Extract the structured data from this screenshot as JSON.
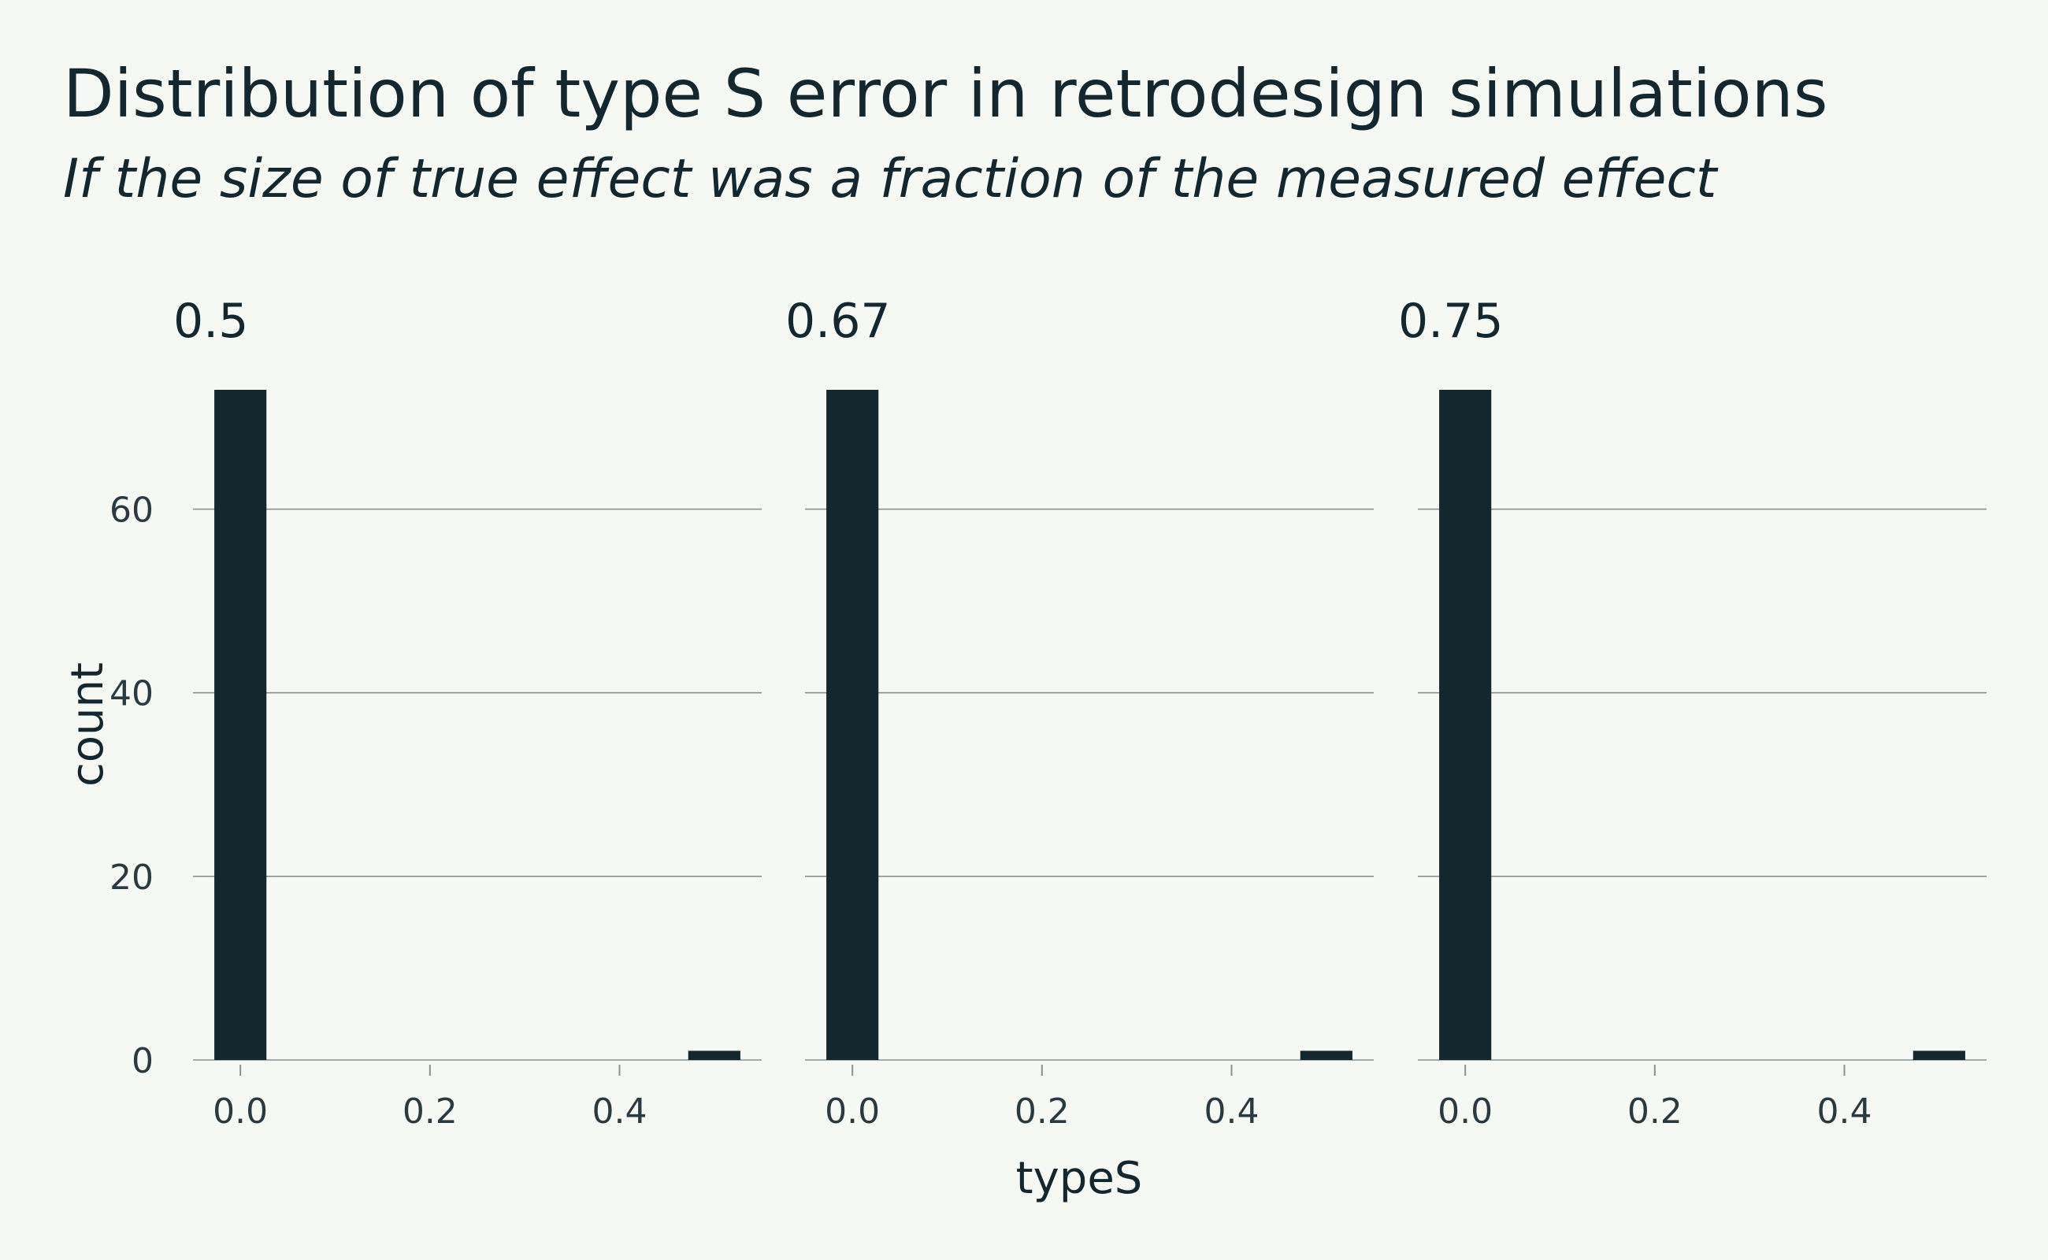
{
  "chart_data": {
    "type": "bar",
    "title": "Distribution of type S error in retrodesign simulations",
    "subtitle": "If the size of true effect was a fraction of the measured effect",
    "xlabel": "typeS",
    "ylabel": "count",
    "ylim": [
      0,
      73
    ],
    "xlim": [
      -0.05,
      0.55
    ],
    "y_ticks": [
      0,
      20,
      40,
      60
    ],
    "x_ticks": [
      0.0,
      0.2,
      0.4
    ],
    "y_tick_labels": [
      "0",
      "20",
      "40",
      "60"
    ],
    "x_tick_labels": [
      "0.0",
      "0.2",
      "0.4"
    ],
    "grid": "horizontal",
    "bar_width": 0.055,
    "panels": [
      {
        "label": "0.5",
        "bars": [
          {
            "x": 0.0,
            "count": 73
          },
          {
            "x": 0.5,
            "count": 1
          }
        ]
      },
      {
        "label": "0.67",
        "bars": [
          {
            "x": 0.0,
            "count": 73
          },
          {
            "x": 0.5,
            "count": 1
          }
        ]
      },
      {
        "label": "0.75",
        "bars": [
          {
            "x": 0.0,
            "count": 73
          },
          {
            "x": 0.5,
            "count": 1
          }
        ]
      }
    ]
  }
}
